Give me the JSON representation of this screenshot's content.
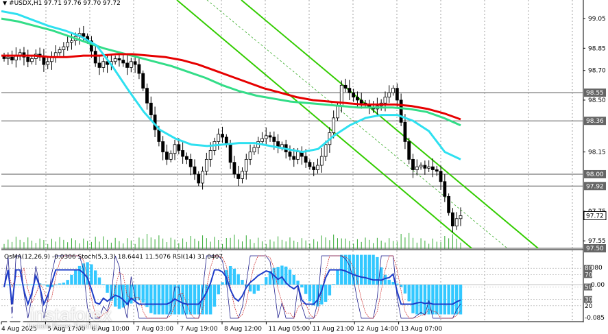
{
  "header": {
    "symbol_icon": "triangle-down-icon",
    "text": "#USDX,H1  97.71 97.76 97.70 97.72"
  },
  "oscillator_header": {
    "text": "OsMA(12,26,9) -0.0306  Stoch(5,3,3) 18.6441 11.5076  RSI(14) 31.0407"
  },
  "watermark": {
    "brand": "instaforex",
    "tagline": "Instant Forex Trading",
    "logo_icon": "instaforex-logo-icon"
  },
  "colors": {
    "background": "#ffffff",
    "candles": "#000000",
    "ema_red": "#e60000",
    "ema_green": "#33dd88",
    "ema_cyan": "#2ee0f0",
    "channel_green": "#33cc00",
    "osma_bars": "#33c8ff",
    "stoch_blue": "#1e3cc8",
    "tag_bg": "#666666",
    "current_tag_bg": "#ffffff"
  },
  "chart_data": {
    "type": "candlestick",
    "symbol": "#USDX",
    "timeframe": "H1",
    "price_axis_ticks": [
      "99.05",
      "98.85",
      "98.70",
      "98.50",
      "98.15",
      "97.75",
      "97.55"
    ],
    "price_levels": [
      {
        "label": "98.55",
        "kind": "horizontal-line"
      },
      {
        "label": "98.36",
        "kind": "horizontal-line"
      },
      {
        "label": "98.00",
        "kind": "horizontal-line"
      },
      {
        "label": "97.92",
        "kind": "horizontal-line"
      },
      {
        "label": "97.50",
        "kind": "horizontal-line"
      }
    ],
    "current_price": "97.72",
    "time_axis_labels": [
      "4 Aug 2025",
      "5 Aug 17:00",
      "6 Aug 10:00",
      "7 Aug 03:00",
      "7 Aug 19:00",
      "8 Aug 12:00",
      "11 Aug 05:00",
      "11 Aug 21:00",
      "12 Aug 14:00",
      "13 Aug 07:00"
    ],
    "osc_axis_ticks": [
      "0.080",
      "80",
      "70",
      "50",
      "30",
      "20",
      "-0.085"
    ],
    "osc_axis_plain": [
      "0.080",
      "20",
      "-0.085"
    ],
    "osc_axis_tags": [
      "80",
      "70",
      "50",
      "30"
    ],
    "osc_zero_label": "0.00",
    "closes": [
      98.78,
      98.79,
      98.77,
      98.8,
      98.82,
      98.79,
      98.76,
      98.78,
      98.81,
      98.79,
      98.74,
      98.76,
      98.79,
      98.82,
      98.84,
      98.86,
      98.89,
      98.9,
      98.93,
      98.95,
      98.93,
      98.9,
      98.83,
      98.75,
      98.72,
      98.76,
      98.74,
      98.76,
      98.78,
      98.77,
      98.75,
      98.72,
      98.76,
      98.74,
      98.68,
      98.58,
      98.48,
      98.4,
      98.3,
      98.22,
      98.15,
      98.1,
      98.14,
      98.2,
      98.16,
      98.12,
      98.1,
      98.05,
      98.0,
      97.94,
      98.02,
      98.1,
      98.16,
      98.22,
      98.27,
      98.25,
      98.2,
      98.08,
      98.0,
      97.97,
      98.02,
      98.1,
      98.15,
      98.18,
      98.22,
      98.24,
      98.26,
      98.25,
      98.22,
      98.18,
      98.2,
      98.15,
      98.12,
      98.1,
      98.15,
      98.12,
      98.08,
      98.05,
      98.03,
      98.06,
      98.12,
      98.2,
      98.28,
      98.38,
      98.46,
      98.6,
      98.58,
      98.55,
      98.52,
      98.5,
      98.48,
      98.47,
      98.45,
      98.44,
      98.46,
      98.48,
      98.52,
      98.55,
      98.58,
      98.5,
      98.35,
      98.22,
      98.1,
      98.03,
      98.05,
      98.06,
      98.04,
      98.05,
      98.03,
      98.02,
      97.95,
      97.85,
      97.74,
      97.65,
      97.7,
      97.72
    ],
    "ema_red": [
      98.8,
      98.8,
      98.8,
      98.79,
      98.79,
      98.8,
      98.8,
      98.81,
      98.81,
      98.8,
      98.79,
      98.77,
      98.74,
      98.7,
      98.66,
      98.62,
      98.58,
      98.55,
      98.52,
      98.5,
      98.49,
      98.48,
      98.47,
      98.47,
      98.47,
      98.46,
      98.44,
      98.41,
      98.37
    ],
    "ema_green": [
      99.05,
      99.03,
      99.0,
      98.97,
      98.93,
      98.89,
      98.85,
      98.82,
      98.79,
      98.76,
      98.73,
      98.69,
      98.65,
      98.6,
      98.56,
      98.53,
      98.51,
      98.49,
      98.48,
      98.47,
      98.46,
      98.45,
      98.45,
      98.45,
      98.44,
      98.42,
      98.38,
      98.33
    ],
    "ema_cyan": [
      99.1,
      99.08,
      99.04,
      99.0,
      98.97,
      98.93,
      98.87,
      98.73,
      98.57,
      98.42,
      98.3,
      98.24,
      98.2,
      98.19,
      98.2,
      98.21,
      98.21,
      98.19,
      98.17,
      98.15,
      98.17,
      98.26,
      98.33,
      98.38,
      98.4,
      98.4,
      98.36,
      98.29,
      98.15,
      98.1
    ]
  },
  "indicators": {
    "osma": {
      "name": "OsMA(12,26,9)",
      "value": -0.0306
    },
    "stoch": {
      "name": "Stoch(5,3,3)",
      "main": 18.6441,
      "signal": 11.5076
    },
    "rsi": {
      "name": "RSI(14)",
      "value": 31.0407
    }
  }
}
